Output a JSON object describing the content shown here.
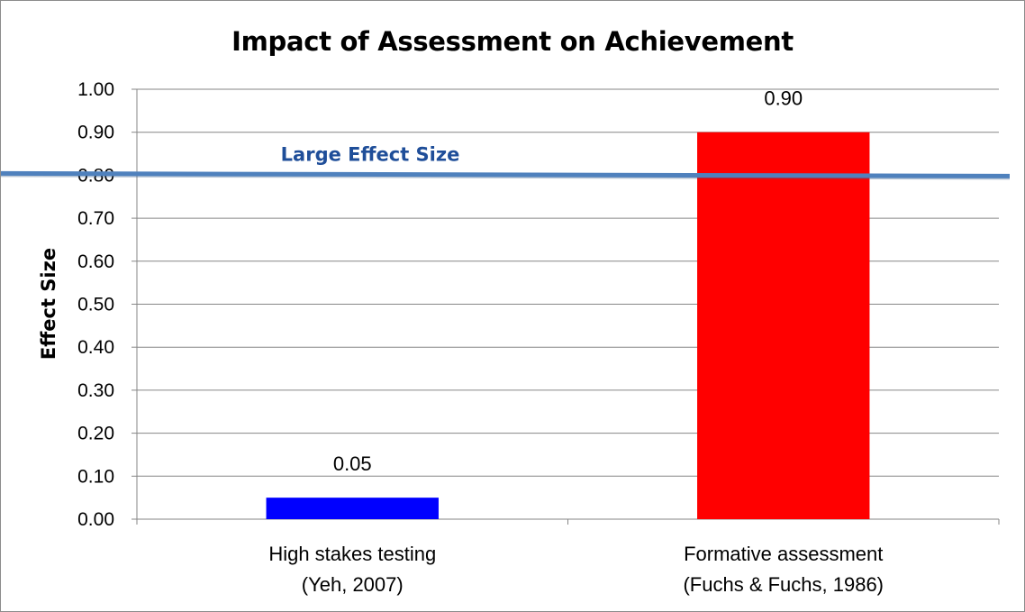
{
  "chart_data": {
    "type": "bar",
    "title": "Impact of Assessment on Achievement",
    "ylabel": "Effect Size",
    "xlabel": "",
    "ylim": [
      0,
      1.0
    ],
    "y_ticks": [
      "0.00",
      "0.10",
      "0.20",
      "0.30",
      "0.40",
      "0.50",
      "0.60",
      "0.70",
      "0.80",
      "0.90",
      "1.00"
    ],
    "categories": [
      {
        "line1": "High stakes testing",
        "line2": "(Yeh, 2007)"
      },
      {
        "line1": "Formative assessment",
        "line2": "(Fuchs & Fuchs, 1986)"
      }
    ],
    "values": [
      0.05,
      0.9
    ],
    "data_labels": [
      "0.05",
      "0.90"
    ],
    "bar_colors": [
      "#0000ff",
      "#ff0000"
    ],
    "grid": true,
    "reference_line": {
      "value": 0.8,
      "label": "Large Effect Size",
      "color": "#4f81bd",
      "label_color": "#1f4e99"
    }
  }
}
